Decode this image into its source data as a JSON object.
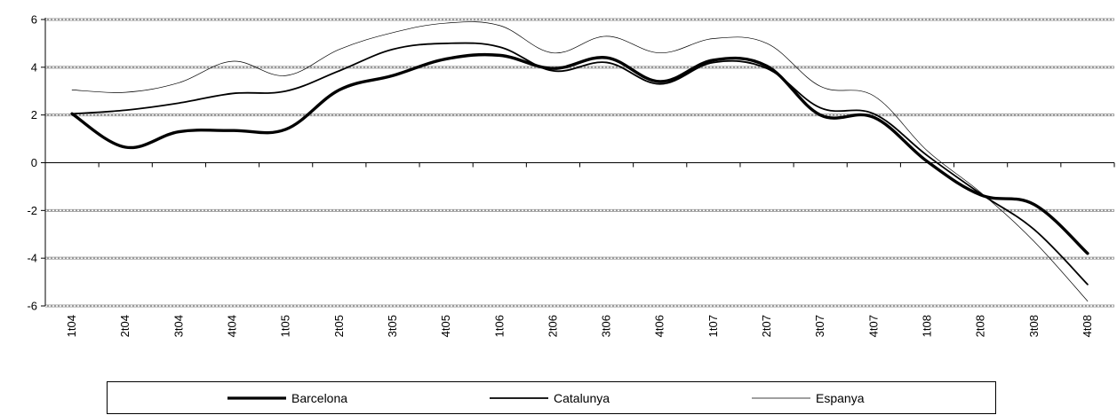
{
  "chart_data": {
    "type": "line",
    "title": "",
    "xlabel": "",
    "ylabel": "",
    "ylim": [
      -6,
      6
    ],
    "yticks": [
      "6",
      "4",
      "2",
      "0",
      "-2",
      "-4",
      "-6"
    ],
    "yticks_values": [
      6,
      4,
      2,
      0,
      -2,
      -4,
      -6
    ],
    "grid": "horizontal dashed",
    "legend_position": "bottom",
    "categories": [
      "1t04",
      "2t04",
      "3t04",
      "4t04",
      "1t05",
      "2t05",
      "3t05",
      "4t05",
      "1t06",
      "2t06",
      "3t06",
      "4t06",
      "1t07",
      "2t07",
      "3t07",
      "4t07",
      "1t08",
      "2t08",
      "3t08",
      "4t08"
    ],
    "series": [
      {
        "name": "Barcelona",
        "style": "thick",
        "color": "#000000",
        "values": [
          2.05,
          0.65,
          1.3,
          1.35,
          1.4,
          3.05,
          3.65,
          4.35,
          4.5,
          3.95,
          4.4,
          3.4,
          4.3,
          4.05,
          2.0,
          1.9,
          0.05,
          -1.35,
          -1.75,
          -3.8
        ]
      },
      {
        "name": "Catalunya",
        "style": "medium",
        "color": "#000000",
        "values": [
          2.05,
          2.2,
          2.5,
          2.9,
          3.0,
          3.85,
          4.75,
          5.0,
          4.85,
          3.85,
          4.2,
          3.3,
          4.2,
          3.95,
          2.3,
          2.05,
          0.3,
          -1.3,
          -2.8,
          -5.1
        ]
      },
      {
        "name": "Espanya",
        "style": "thin",
        "color": "#000000",
        "values": [
          3.05,
          2.95,
          3.35,
          4.25,
          3.65,
          4.75,
          5.45,
          5.85,
          5.75,
          4.6,
          5.3,
          4.6,
          5.2,
          5.0,
          3.2,
          2.8,
          0.5,
          -1.25,
          -3.3,
          -5.8
        ]
      }
    ]
  }
}
